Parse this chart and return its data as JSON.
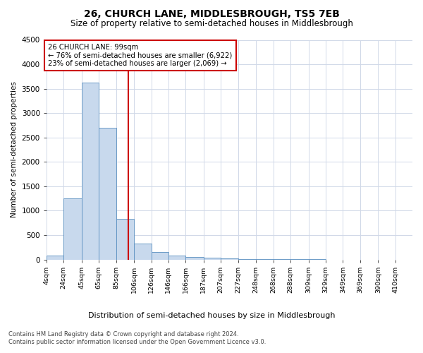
{
  "title": "26, CHURCH LANE, MIDDLESBROUGH, TS5 7EB",
  "subtitle": "Size of property relative to semi-detached houses in Middlesbrough",
  "xlabel": "Distribution of semi-detached houses by size in Middlesbrough",
  "ylabel": "Number of semi-detached properties",
  "bar_labels": [
    "4sqm",
    "24sqm",
    "45sqm",
    "65sqm",
    "85sqm",
    "106sqm",
    "126sqm",
    "146sqm",
    "166sqm",
    "187sqm",
    "207sqm",
    "227sqm",
    "248sqm",
    "268sqm",
    "288sqm",
    "309sqm",
    "329sqm",
    "349sqm",
    "369sqm",
    "390sqm",
    "410sqm"
  ],
  "bar_values": [
    85,
    1250,
    3620,
    2700,
    840,
    320,
    150,
    80,
    55,
    40,
    25,
    15,
    10,
    5,
    3,
    2,
    1,
    0,
    0,
    0,
    0
  ],
  "bar_color": "#c8d9ed",
  "bar_edge_color": "#5a8fc0",
  "vline_color": "#cc0000",
  "annotation_text": "26 CHURCH LANE: 99sqm\n← 76% of semi-detached houses are smaller (6,922)\n23% of semi-detached houses are larger (2,069) →",
  "ylim": [
    0,
    4500
  ],
  "yticks": [
    0,
    500,
    1000,
    1500,
    2000,
    2500,
    3000,
    3500,
    4000,
    4500
  ],
  "grid_color": "#d0d8e8",
  "background_color": "#ffffff",
  "footer_line1": "Contains HM Land Registry data © Crown copyright and database right 2024.",
  "footer_line2": "Contains public sector information licensed under the Open Government Licence v3.0.",
  "bin_edges": [
    4,
    24,
    45,
    65,
    85,
    106,
    126,
    146,
    166,
    187,
    207,
    227,
    248,
    268,
    288,
    309,
    329,
    349,
    369,
    390,
    410,
    430
  ]
}
